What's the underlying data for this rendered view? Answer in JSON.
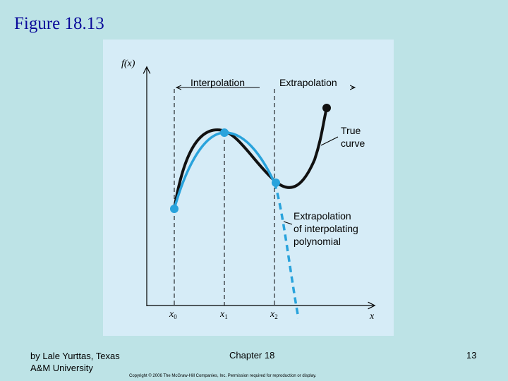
{
  "slide": {
    "title": "Figure 18.13",
    "footer_left_line1": "by Lale Yurttas, Texas",
    "footer_left_line2": "A&M University",
    "footer_center": "Chapter 18",
    "footer_right": "13",
    "copyright": "Copyright © 2006 The McGraw-Hill Companies, Inc. Permission required for reproduction or display."
  },
  "figure": {
    "y_axis_label": "f(x)",
    "x_axis_label": "x",
    "x_ticks": [
      {
        "base": "x",
        "sub": "0"
      },
      {
        "base": "x",
        "sub": "1"
      },
      {
        "base": "x",
        "sub": "2"
      }
    ],
    "region_labels": [
      "Interpolation",
      "Extrapolation"
    ],
    "true_curve_label": [
      "True",
      "curve"
    ],
    "extrapolation_label": [
      "Extrapolation",
      "of interpolating",
      "polynomial"
    ],
    "colors": {
      "true_curve": "#111111",
      "polynomial": "#29a3dc",
      "axes": "#000000",
      "panel": "#d6ecf7",
      "background": "#bde3e6",
      "title": "#0a0a9a"
    }
  }
}
